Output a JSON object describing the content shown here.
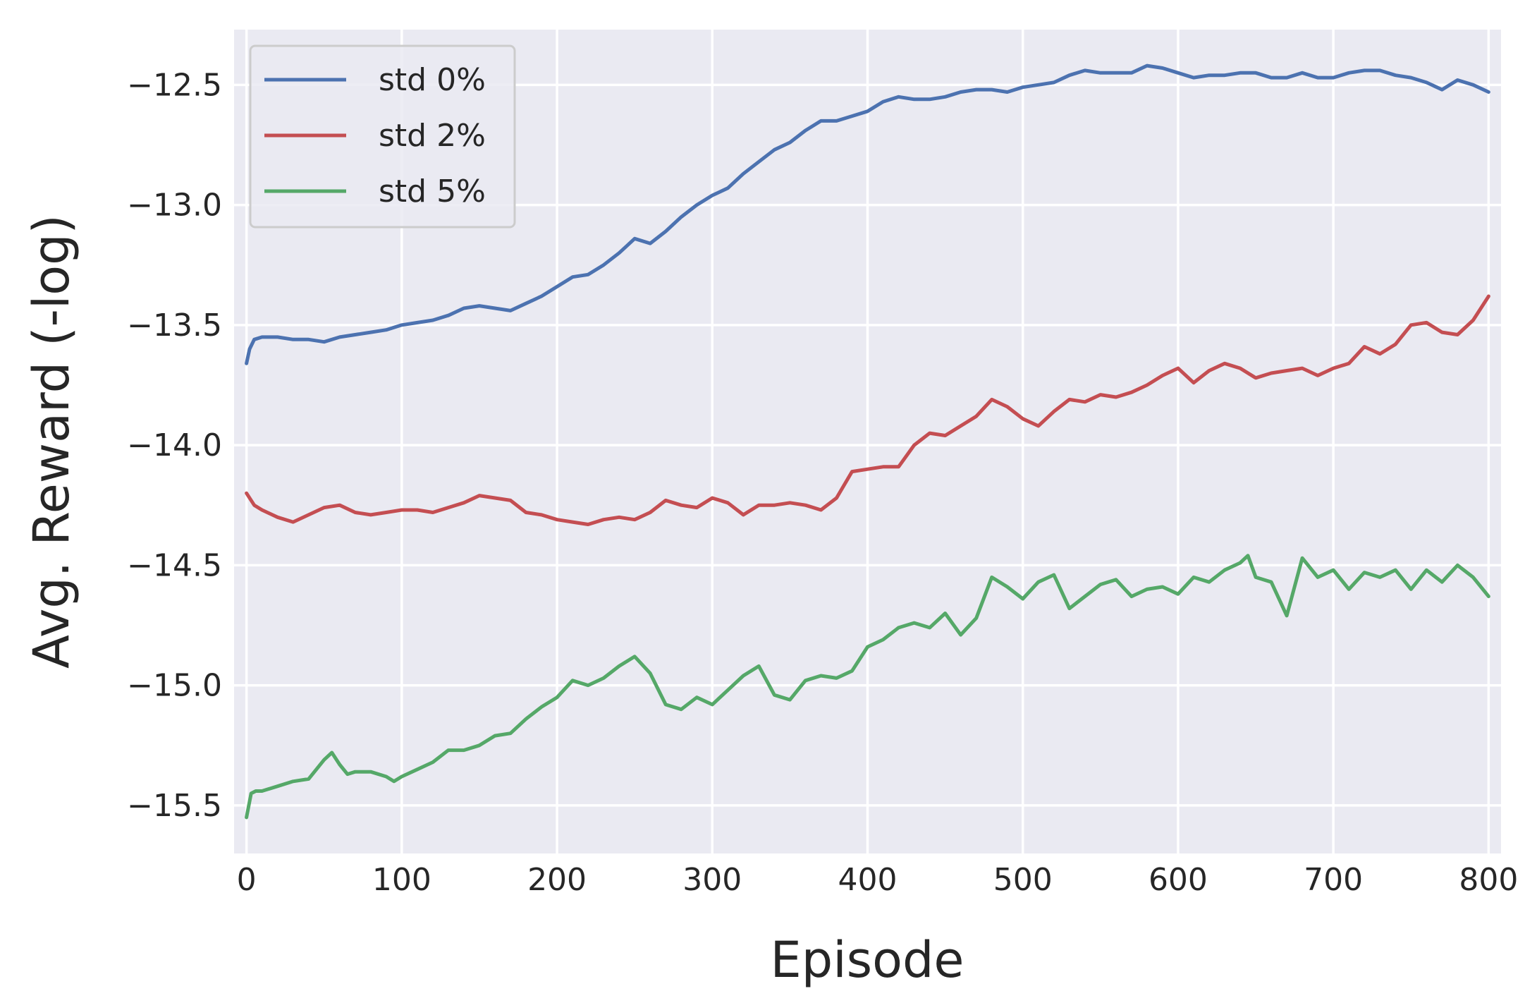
{
  "chart_data": {
    "type": "line",
    "xlabel": "Episode",
    "ylabel": "Avg. Reward (-log)",
    "xlim": [
      -8,
      808
    ],
    "ylim": [
      -15.7,
      -12.27
    ],
    "xticks": [
      0,
      100,
      200,
      300,
      400,
      500,
      600,
      700,
      800
    ],
    "xtick_labels": [
      "0",
      "100",
      "200",
      "300",
      "400",
      "500",
      "600",
      "700",
      "800"
    ],
    "yticks": [
      -12.5,
      -13.0,
      -13.5,
      -14.0,
      -14.5,
      -15.0,
      -15.5
    ],
    "ytick_labels": [
      "−12.5",
      "−13.0",
      "−13.5",
      "−14.0",
      "−14.5",
      "−15.0",
      "−15.5"
    ],
    "grid": true,
    "background": "#eaeaf2",
    "legend_position": "top-left",
    "series": [
      {
        "name": "std 0%",
        "color": "#4c72b0",
        "x": [
          0,
          2,
          5,
          10,
          20,
          30,
          40,
          50,
          60,
          70,
          80,
          90,
          100,
          110,
          120,
          130,
          140,
          150,
          160,
          170,
          180,
          190,
          200,
          210,
          220,
          230,
          240,
          250,
          260,
          270,
          280,
          290,
          300,
          310,
          320,
          330,
          340,
          350,
          360,
          370,
          380,
          390,
          400,
          410,
          420,
          430,
          440,
          450,
          460,
          470,
          480,
          490,
          500,
          510,
          520,
          530,
          540,
          550,
          560,
          570,
          580,
          590,
          600,
          610,
          620,
          630,
          640,
          650,
          660,
          670,
          680,
          690,
          700,
          710,
          720,
          730,
          740,
          750,
          760,
          770,
          780,
          790,
          800
        ],
        "y": [
          -13.66,
          -13.6,
          -13.56,
          -13.55,
          -13.55,
          -13.56,
          -13.56,
          -13.57,
          -13.55,
          -13.54,
          -13.53,
          -13.52,
          -13.5,
          -13.49,
          -13.48,
          -13.46,
          -13.43,
          -13.42,
          -13.43,
          -13.44,
          -13.41,
          -13.38,
          -13.34,
          -13.3,
          -13.29,
          -13.25,
          -13.2,
          -13.14,
          -13.16,
          -13.11,
          -13.05,
          -13.0,
          -12.96,
          -12.93,
          -12.87,
          -12.82,
          -12.77,
          -12.74,
          -12.69,
          -12.65,
          -12.65,
          -12.63,
          -12.61,
          -12.57,
          -12.55,
          -12.56,
          -12.56,
          -12.55,
          -12.53,
          -12.52,
          -12.52,
          -12.53,
          -12.51,
          -12.5,
          -12.49,
          -12.46,
          -12.44,
          -12.45,
          -12.45,
          -12.45,
          -12.42,
          -12.43,
          -12.45,
          -12.47,
          -12.46,
          -12.46,
          -12.45,
          -12.45,
          -12.47,
          -12.47,
          -12.45,
          -12.47,
          -12.47,
          -12.45,
          -12.44,
          -12.44,
          -12.46,
          -12.47,
          -12.49,
          -12.52,
          -12.48,
          -12.5,
          -12.53
        ]
      },
      {
        "name": "std 2%",
        "color": "#c44e52",
        "x": [
          0,
          5,
          10,
          20,
          30,
          40,
          50,
          60,
          70,
          80,
          90,
          100,
          110,
          120,
          130,
          140,
          150,
          160,
          170,
          180,
          190,
          200,
          210,
          220,
          230,
          240,
          250,
          260,
          270,
          280,
          290,
          300,
          310,
          320,
          330,
          340,
          350,
          360,
          370,
          380,
          390,
          400,
          410,
          420,
          430,
          440,
          450,
          460,
          470,
          480,
          490,
          500,
          510,
          520,
          530,
          540,
          550,
          560,
          570,
          580,
          590,
          600,
          610,
          620,
          630,
          640,
          650,
          660,
          670,
          680,
          690,
          700,
          710,
          720,
          730,
          740,
          750,
          760,
          770,
          780,
          790,
          795,
          800
        ],
        "y": [
          -14.2,
          -14.25,
          -14.27,
          -14.3,
          -14.32,
          -14.29,
          -14.26,
          -14.25,
          -14.28,
          -14.29,
          -14.28,
          -14.27,
          -14.27,
          -14.28,
          -14.26,
          -14.24,
          -14.21,
          -14.22,
          -14.23,
          -14.28,
          -14.29,
          -14.31,
          -14.32,
          -14.33,
          -14.31,
          -14.3,
          -14.31,
          -14.28,
          -14.23,
          -14.25,
          -14.26,
          -14.22,
          -14.24,
          -14.29,
          -14.25,
          -14.25,
          -14.24,
          -14.25,
          -14.27,
          -14.22,
          -14.11,
          -14.1,
          -14.09,
          -14.09,
          -14.0,
          -13.95,
          -13.96,
          -13.92,
          -13.88,
          -13.81,
          -13.84,
          -13.89,
          -13.92,
          -13.86,
          -13.81,
          -13.82,
          -13.79,
          -13.8,
          -13.78,
          -13.75,
          -13.71,
          -13.68,
          -13.74,
          -13.69,
          -13.66,
          -13.68,
          -13.72,
          -13.7,
          -13.69,
          -13.68,
          -13.71,
          -13.68,
          -13.66,
          -13.59,
          -13.62,
          -13.58,
          -13.5,
          -13.49,
          -13.53,
          -13.54,
          -13.48,
          -13.43,
          -13.38
        ]
      },
      {
        "name": "std 5%",
        "color": "#55a868",
        "x": [
          0,
          3,
          6,
          10,
          20,
          30,
          40,
          50,
          55,
          60,
          65,
          70,
          80,
          90,
          95,
          100,
          110,
          120,
          130,
          140,
          150,
          160,
          170,
          180,
          190,
          200,
          210,
          220,
          230,
          240,
          250,
          260,
          270,
          280,
          290,
          300,
          310,
          320,
          330,
          340,
          350,
          360,
          370,
          380,
          390,
          400,
          410,
          420,
          430,
          440,
          450,
          460,
          470,
          480,
          490,
          500,
          510,
          520,
          530,
          540,
          550,
          560,
          570,
          580,
          590,
          600,
          610,
          620,
          630,
          640,
          645,
          650,
          660,
          670,
          680,
          690,
          700,
          710,
          720,
          730,
          740,
          750,
          760,
          770,
          780,
          790,
          800
        ],
        "y": [
          -15.55,
          -15.45,
          -15.44,
          -15.44,
          -15.42,
          -15.4,
          -15.39,
          -15.31,
          -15.28,
          -15.33,
          -15.37,
          -15.36,
          -15.36,
          -15.38,
          -15.4,
          -15.38,
          -15.35,
          -15.32,
          -15.27,
          -15.27,
          -15.25,
          -15.21,
          -15.2,
          -15.14,
          -15.09,
          -15.05,
          -14.98,
          -15.0,
          -14.97,
          -14.92,
          -14.88,
          -14.95,
          -15.08,
          -15.1,
          -15.05,
          -15.08,
          -15.02,
          -14.96,
          -14.92,
          -15.04,
          -15.06,
          -14.98,
          -14.96,
          -14.97,
          -14.94,
          -14.84,
          -14.81,
          -14.76,
          -14.74,
          -14.76,
          -14.7,
          -14.79,
          -14.72,
          -14.55,
          -14.59,
          -14.64,
          -14.57,
          -14.54,
          -14.68,
          -14.63,
          -14.58,
          -14.56,
          -14.63,
          -14.6,
          -14.59,
          -14.62,
          -14.55,
          -14.57,
          -14.52,
          -14.49,
          -14.46,
          -14.55,
          -14.57,
          -14.71,
          -14.47,
          -14.55,
          -14.52,
          -14.6,
          -14.53,
          -14.55,
          -14.52,
          -14.6,
          -14.52,
          -14.57,
          -14.5,
          -14.55,
          -14.63
        ]
      }
    ]
  }
}
